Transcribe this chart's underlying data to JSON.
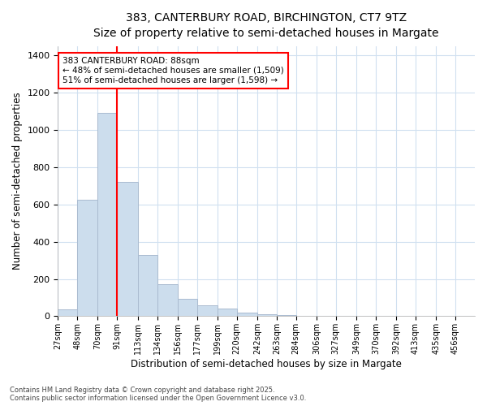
{
  "title_line1": "383, CANTERBURY ROAD, BIRCHINGTON, CT7 9TZ",
  "title_line2": "Size of property relative to semi-detached houses in Margate",
  "xlabel": "Distribution of semi-detached houses by size in Margate",
  "ylabel": "Number of semi-detached properties",
  "footnote": "Contains HM Land Registry data © Crown copyright and database right 2025.\nContains public sector information licensed under the Open Government Licence v3.0.",
  "bins": [
    "27sqm",
    "48sqm",
    "70sqm",
    "91sqm",
    "113sqm",
    "134sqm",
    "156sqm",
    "177sqm",
    "199sqm",
    "220sqm",
    "242sqm",
    "263sqm",
    "284sqm",
    "306sqm",
    "327sqm",
    "349sqm",
    "370sqm",
    "392sqm",
    "413sqm",
    "435sqm",
    "456sqm"
  ],
  "bin_edges": [
    27,
    48,
    70,
    91,
    113,
    134,
    156,
    177,
    199,
    220,
    242,
    263,
    284,
    306,
    327,
    349,
    370,
    392,
    413,
    435,
    456
  ],
  "values": [
    35,
    625,
    1090,
    720,
    330,
    170,
    95,
    60,
    40,
    20,
    10,
    5,
    0,
    0,
    0,
    0,
    0,
    0,
    0,
    0
  ],
  "bar_color": "#ccdded",
  "bar_edge_color": "#aabbd0",
  "grid_color": "#d0e0f0",
  "bg_color": "#ffffff",
  "plot_bg_color": "#ffffff",
  "vline_x": 91,
  "vline_color": "red",
  "annotation_text": "383 CANTERBURY ROAD: 88sqm\n← 48% of semi-detached houses are smaller (1,509)\n51% of semi-detached houses are larger (1,598) →",
  "annotation_box_color": "white",
  "annotation_box_edge": "red",
  "ylim": [
    0,
    1450
  ],
  "yticks": [
    0,
    200,
    400,
    600,
    800,
    1000,
    1200,
    1400
  ],
  "property_sqm": 88
}
